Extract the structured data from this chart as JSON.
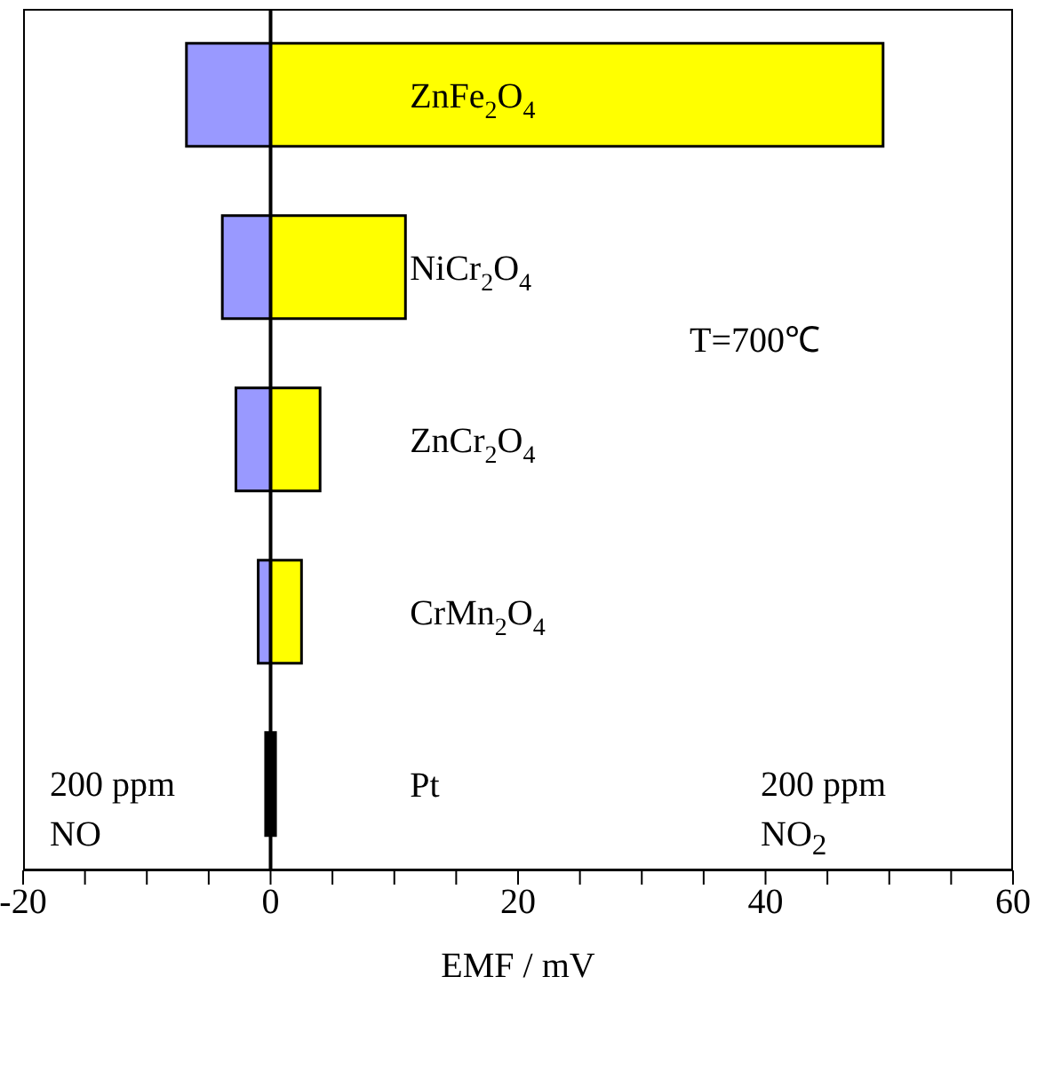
{
  "chart_data": {
    "type": "bar",
    "orientation": "horizontal",
    "stacked": true,
    "categories": [
      "ZnFe$_{2}$O$_{4}$",
      "NiCr$_{2}$O$_{4}$",
      "ZnCr$_{2}$O$_{4}$",
      "CrMn$_{2}$O$_{4}$",
      "Pt"
    ],
    "series": [
      {
        "colors": [
          "#9999ff",
          "#9999ff",
          "#9999ff",
          "#9999ff",
          "#000000"
        ],
        "values": [
          -6.8,
          -3.9,
          -2.8,
          -1.0,
          -0.4
        ]
      },
      {
        "colors": [
          "#ffff00",
          "#ffff00",
          "#ffff00",
          "#ffff00",
          "#000000"
        ],
        "values": [
          49.5,
          10.9,
          4.0,
          2.5,
          0.4
        ]
      }
    ],
    "xlabel": "EMF / mV",
    "xlim": [
      -20,
      60
    ],
    "xticks": [
      -20,
      {
        "value": -15,
        "label": null
      },
      {
        "value": -10,
        "label": null
      },
      {
        "value": -5,
        "label": null
      },
      0,
      {
        "value": 5,
        "label": null
      },
      {
        "value": 10,
        "label": null
      },
      {
        "value": 15,
        "label": null
      },
      20,
      {
        "value": 25,
        "label": null
      },
      {
        "value": 30,
        "label": null
      },
      {
        "value": 35,
        "label": null
      },
      40,
      {
        "value": 45,
        "label": null
      },
      {
        "value": 50,
        "label": null
      },
      {
        "value": 55,
        "label": null
      },
      60
    ],
    "ref_lines": [
      {
        "axis": "x",
        "value": 0,
        "color": "#000000"
      }
    ],
    "tick_labels": "x",
    "annotations": [
      "T=700℃",
      "200 ppm\nNO",
      "200 ppm\nNO$_{2}$"
    ]
  }
}
